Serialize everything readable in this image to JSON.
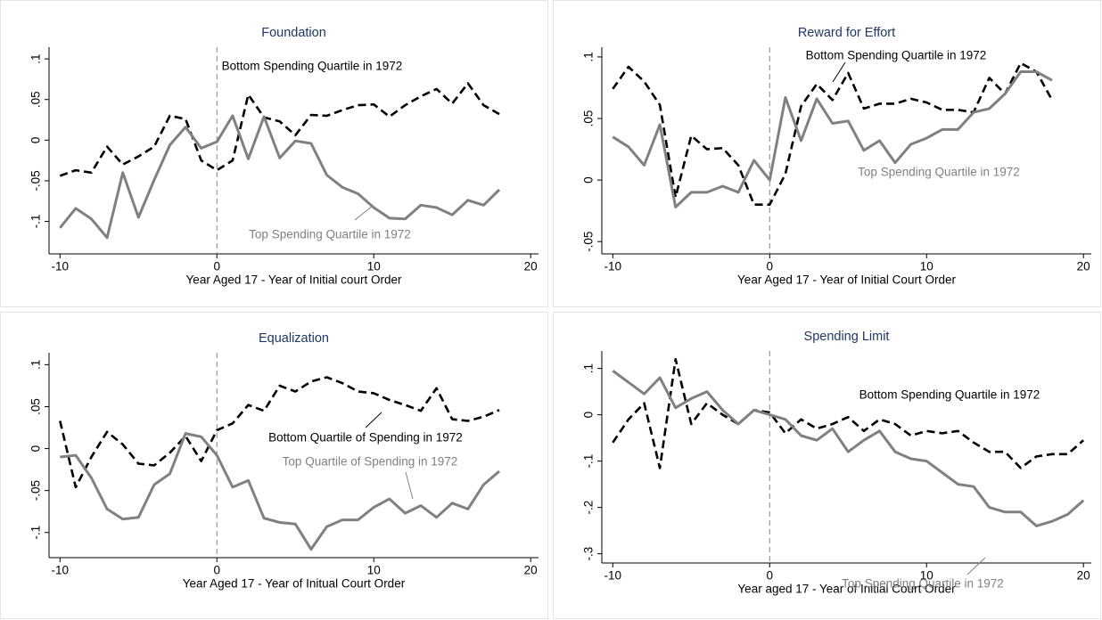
{
  "chart_data": [
    {
      "type": "line",
      "title": "Foundation",
      "xlabel": "Year Aged 17 - Year of Initial court Order",
      "x": [
        -10,
        -9,
        -8,
        -7,
        -6,
        -5,
        -4,
        -3,
        -2,
        -1,
        0,
        1,
        2,
        3,
        4,
        5,
        6,
        7,
        8,
        9,
        10,
        11,
        12,
        13,
        14,
        15,
        16,
        17,
        18
      ],
      "series": [
        {
          "color": "#000000",
          "dash": true,
          "values": [
            -0.044,
            -0.037,
            -0.04,
            -0.008,
            -0.03,
            -0.02,
            -0.008,
            0.03,
            0.026,
            -0.025,
            -0.037,
            -0.025,
            0.056,
            0.028,
            0.023,
            0.006,
            0.031,
            0.03,
            0.037,
            0.043,
            0.044,
            0.029,
            0.043,
            0.054,
            0.063,
            0.045,
            0.07,
            0.043,
            0.032
          ]
        },
        {
          "color": "#808080",
          "dash": false,
          "values": [
            -0.108,
            -0.084,
            -0.097,
            -0.12,
            -0.04,
            -0.095,
            -0.049,
            -0.006,
            0.016,
            -0.01,
            -0.002,
            0.03,
            -0.023,
            0.029,
            -0.022,
            -0.001,
            -0.004,
            -0.043,
            -0.058,
            -0.066,
            -0.083,
            -0.096,
            -0.097,
            -0.08,
            -0.083,
            -0.092,
            -0.074,
            -0.08,
            -0.061
          ]
        }
      ],
      "annotations": [
        {
          "text": "Bottom Spending Quartile in 1972",
          "color": "#000000"
        },
        {
          "text": "Top Spending Quartile in 1972",
          "color": "#808080"
        }
      ],
      "xline": 0,
      "xlim": [
        -10.7,
        20.5
      ],
      "xticks": [
        -10,
        0,
        10,
        20
      ],
      "ylim": [
        -0.14,
        0.11
      ],
      "yticks": [
        {
          "value": -0.1,
          "label": "-.1"
        },
        {
          "value": -0.05,
          "label": "-.05"
        },
        0,
        {
          "value": 0.05,
          "label": ".05"
        },
        {
          "value": 0.1,
          "label": ".1"
        }
      ]
    },
    {
      "type": "line",
      "title": "Reward for Effort",
      "xlabel": "Year Aged 17 - Year of Initial Court Order",
      "x": [
        -10,
        -9,
        -8,
        -7,
        -6,
        -5,
        -4,
        -3,
        -2,
        -1,
        0,
        1,
        2,
        3,
        4,
        5,
        6,
        7,
        8,
        9,
        10,
        11,
        12,
        13,
        14,
        15,
        16,
        17,
        18
      ],
      "series": [
        {
          "color": "#000000",
          "dash": true,
          "values": [
            0.074,
            0.092,
            0.08,
            0.061,
            -0.014,
            0.036,
            0.025,
            0.026,
            0.012,
            -0.02,
            -0.02,
            0.005,
            0.06,
            0.078,
            0.065,
            0.087,
            0.058,
            0.062,
            0.062,
            0.066,
            0.063,
            0.057,
            0.057,
            0.055,
            0.083,
            0.07,
            0.095,
            0.088,
            0.065
          ]
        },
        {
          "color": "#808080",
          "dash": false,
          "values": [
            0.035,
            0.027,
            0.012,
            0.045,
            -0.022,
            -0.01,
            -0.01,
            -0.005,
            -0.01,
            0.016,
            0,
            0.067,
            0.032,
            0.066,
            0.046,
            0.048,
            0.024,
            0.032,
            0.014,
            0.029,
            0.034,
            0.041,
            0.041,
            0.055,
            0.058,
            0.07,
            0.088,
            0.088,
            0.081
          ]
        }
      ],
      "annotations": [
        {
          "text": "Bottom Spending Quartile in 1972",
          "color": "#000000"
        },
        {
          "text": "Top Spending Quartile in 1972",
          "color": "#808080"
        }
      ],
      "xline": 0,
      "xlim": [
        -10.7,
        20.5
      ],
      "xticks": [
        -10,
        0,
        10,
        20
      ],
      "ylim": [
        -0.06,
        0.105
      ],
      "yticks": [
        {
          "value": -0.05,
          "label": "-.05"
        },
        0,
        {
          "value": 0.05,
          "label": ".05"
        },
        {
          "value": 0.1,
          "label": ".1"
        }
      ]
    },
    {
      "type": "line",
      "title": "Equalization",
      "xlabel": "Year Aged 17 - Year of Initual Court Order",
      "x": [
        -10,
        -9,
        -8,
        -7,
        -6,
        -5,
        -4,
        -3,
        -2,
        -1,
        0,
        1,
        2,
        3,
        4,
        5,
        6,
        7,
        8,
        9,
        10,
        11,
        12,
        13,
        14,
        15,
        16,
        17,
        18
      ],
      "series": [
        {
          "color": "#000000",
          "dash": true,
          "values": [
            0.033,
            -0.046,
            -0.01,
            0.02,
            0.005,
            -0.018,
            -0.02,
            -0.005,
            0.015,
            -0.015,
            0.022,
            0.03,
            0.052,
            0.045,
            0.075,
            0.068,
            0.08,
            0.085,
            0.078,
            0.068,
            0.066,
            0.058,
            0.052,
            0.045,
            0.072,
            0.035,
            0.033,
            0.038,
            0.046
          ]
        },
        {
          "color": "#808080",
          "dash": false,
          "values": [
            -0.01,
            -0.008,
            -0.035,
            -0.072,
            -0.084,
            -0.082,
            -0.043,
            -0.03,
            0.018,
            0.014,
            -0.008,
            -0.046,
            -0.038,
            -0.083,
            -0.088,
            -0.09,
            -0.12,
            -0.093,
            -0.085,
            -0.085,
            -0.07,
            -0.06,
            -0.077,
            -0.068,
            -0.082,
            -0.065,
            -0.072,
            -0.043,
            -0.027
          ]
        }
      ],
      "annotations": [
        {
          "text": "Bottom Quartile of Spending in 1972",
          "color": "#000000"
        },
        {
          "text": "Top Quartile of Spending in 1972",
          "color": "#808080"
        }
      ],
      "xline": 0,
      "xlim": [
        -10.7,
        20.5
      ],
      "xticks": [
        -10,
        0,
        10,
        20
      ],
      "ylim": [
        -0.13,
        0.11
      ],
      "yticks": [
        {
          "value": -0.1,
          "label": "-.1"
        },
        {
          "value": -0.05,
          "label": "-.05"
        },
        0,
        {
          "value": 0.05,
          "label": ".05"
        },
        {
          "value": 0.1,
          "label": ".1"
        }
      ]
    },
    {
      "type": "line",
      "title": "Spending Limit",
      "xlabel": "Year aged 17 - Year of Initial Court Order",
      "x": [
        -10,
        -9,
        -8,
        -7,
        -6,
        -5,
        -4,
        -3,
        -2,
        -1,
        0,
        1,
        2,
        3,
        4,
        5,
        6,
        7,
        8,
        9,
        10,
        11,
        12,
        13,
        14,
        15,
        16,
        17,
        18,
        19,
        20
      ],
      "series": [
        {
          "color": "#000000",
          "dash": true,
          "values": [
            -0.06,
            -0.01,
            0.025,
            -0.115,
            0.12,
            -0.02,
            0.025,
            0,
            -0.02,
            0.01,
            0.005,
            -0.04,
            -0.01,
            -0.03,
            -0.02,
            -0.005,
            -0.035,
            -0.01,
            -0.02,
            -0.045,
            -0.035,
            -0.04,
            -0.035,
            -0.06,
            -0.08,
            -0.08,
            -0.115,
            -0.09,
            -0.085,
            -0.085,
            -0.055
          ]
        },
        {
          "color": "#808080",
          "dash": false,
          "values": [
            0.095,
            0.07,
            0.045,
            0.08,
            0.015,
            0.035,
            0.05,
            0.01,
            -0.02,
            0.01,
            0,
            -0.01,
            -0.045,
            -0.055,
            -0.03,
            -0.08,
            -0.055,
            -0.035,
            -0.08,
            -0.095,
            -0.1,
            -0.125,
            -0.15,
            -0.155,
            -0.2,
            -0.21,
            -0.21,
            -0.24,
            -0.23,
            -0.215,
            -0.185
          ]
        }
      ],
      "annotations": [
        {
          "text": "Bottom Spending Quartile in 1972",
          "color": "#000000"
        },
        {
          "text": "Top Spending Quartile in 1972",
          "color": "#808080"
        }
      ],
      "xline": 0,
      "xlim": [
        -10.7,
        20.5
      ],
      "xticks": [
        -10,
        0,
        10,
        20
      ],
      "ylim": [
        -0.32,
        0.13
      ],
      "yticks": [
        {
          "value": -0.3,
          "label": "-.3"
        },
        {
          "value": -0.2,
          "label": "-.2"
        },
        {
          "value": -0.1,
          "label": "-.1"
        },
        0,
        {
          "value": 0.1,
          "label": ".1"
        }
      ]
    }
  ]
}
